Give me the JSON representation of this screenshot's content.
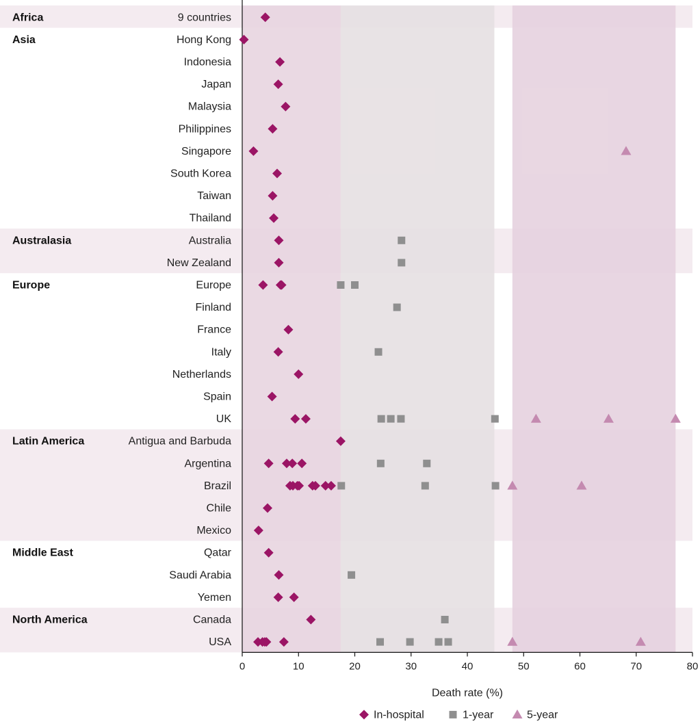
{
  "chart_data": {
    "type": "scatter",
    "xlabel": "Death rate (%)",
    "xlim": [
      0,
      80
    ],
    "xticks": [
      0,
      10,
      20,
      30,
      40,
      50,
      60,
      70,
      80
    ],
    "grid": false,
    "legend_placement": "bottom",
    "colors": {
      "in_hospital": "#9b1565",
      "one_year": "#8f8f8f",
      "five_year": "#c48ab0",
      "band_in_hospital": "#e8d5e0",
      "band_one_year": "#e6e0e2",
      "band_five_year": "#e6d2df",
      "stripe": "#f4ebf0"
    },
    "bands": [
      {
        "series": "In-hospital",
        "from": 0,
        "to": 17.5
      },
      {
        "series": "1-year",
        "from": 17.5,
        "to": 44.8
      },
      {
        "series": "5-year",
        "from": 48,
        "to": 77
      }
    ],
    "legend": [
      {
        "key": "in_hospital",
        "marker": "diamond",
        "label": "In-hospital"
      },
      {
        "key": "one_year",
        "marker": "square",
        "label": "1-year"
      },
      {
        "key": "five_year",
        "marker": "triangle",
        "label": "5-year"
      }
    ],
    "regions": [
      {
        "name": "Africa",
        "shaded": true,
        "countries": [
          {
            "name": "9 countries",
            "in_hospital": [
              4.1
            ],
            "one_year": [],
            "five_year": []
          }
        ]
      },
      {
        "name": "Asia",
        "shaded": false,
        "countries": [
          {
            "name": "Hong Kong",
            "in_hospital": [
              0.3
            ],
            "one_year": [],
            "five_year": []
          },
          {
            "name": "Indonesia",
            "in_hospital": [
              6.7
            ],
            "one_year": [],
            "five_year": []
          },
          {
            "name": "Japan",
            "in_hospital": [
              6.4
            ],
            "one_year": [],
            "five_year": []
          },
          {
            "name": "Malaysia",
            "in_hospital": [
              7.7
            ],
            "one_year": [],
            "five_year": []
          },
          {
            "name": "Philippines",
            "in_hospital": [
              5.4
            ],
            "one_year": [],
            "five_year": []
          },
          {
            "name": "Singapore",
            "in_hospital": [
              2.0
            ],
            "one_year": [],
            "five_year": [
              68.2
            ]
          },
          {
            "name": "South Korea",
            "in_hospital": [
              6.2
            ],
            "one_year": [],
            "five_year": []
          },
          {
            "name": "Taiwan",
            "in_hospital": [
              5.4
            ],
            "one_year": [],
            "five_year": []
          },
          {
            "name": "Thailand",
            "in_hospital": [
              5.6
            ],
            "one_year": [],
            "five_year": []
          }
        ]
      },
      {
        "name": "Australasia",
        "shaded": true,
        "countries": [
          {
            "name": "Australia",
            "in_hospital": [
              6.5
            ],
            "one_year": [
              28.3
            ],
            "five_year": []
          },
          {
            "name": "New Zealand",
            "in_hospital": [
              6.5
            ],
            "one_year": [
              28.3
            ],
            "five_year": []
          }
        ]
      },
      {
        "name": "Europe",
        "shaded": false,
        "countries": [
          {
            "name": "Europe",
            "in_hospital": [
              3.7,
              6.8,
              7.0
            ],
            "one_year": [
              17.5,
              20.0
            ],
            "five_year": []
          },
          {
            "name": "Finland",
            "in_hospital": [],
            "one_year": [
              27.5
            ],
            "five_year": []
          },
          {
            "name": "France",
            "in_hospital": [
              8.2
            ],
            "one_year": [],
            "five_year": []
          },
          {
            "name": "Italy",
            "in_hospital": [
              6.4
            ],
            "one_year": [
              24.2
            ],
            "five_year": []
          },
          {
            "name": "Netherlands",
            "in_hospital": [
              10.0
            ],
            "one_year": [],
            "five_year": []
          },
          {
            "name": "Spain",
            "in_hospital": [
              5.3
            ],
            "one_year": [],
            "five_year": []
          },
          {
            "name": "UK",
            "in_hospital": [
              9.4,
              11.3
            ],
            "one_year": [
              24.7,
              26.4,
              28.2,
              44.9
            ],
            "five_year": [
              52.2,
              65.1,
              77.0
            ]
          }
        ]
      },
      {
        "name": "Latin America",
        "shaded": true,
        "countries": [
          {
            "name": "Antigua and Barbuda",
            "in_hospital": [
              17.5
            ],
            "one_year": [],
            "five_year": []
          },
          {
            "name": "Argentina",
            "in_hospital": [
              4.7,
              7.9,
              8.9,
              10.6
            ],
            "one_year": [
              24.6,
              32.8
            ],
            "five_year": []
          },
          {
            "name": "Brazil",
            "in_hospital": [
              8.5,
              9.0,
              9.8,
              10.1,
              12.5,
              13.0,
              14.8,
              15.8
            ],
            "one_year": [
              17.6,
              32.5,
              45.0
            ],
            "five_year": [
              48.0,
              60.3
            ]
          },
          {
            "name": "Chile",
            "in_hospital": [
              4.5
            ],
            "one_year": [],
            "five_year": []
          },
          {
            "name": "Mexico",
            "in_hospital": [
              2.9
            ],
            "one_year": [],
            "five_year": []
          }
        ]
      },
      {
        "name": "Middle East",
        "shaded": false,
        "countries": [
          {
            "name": "Qatar",
            "in_hospital": [
              4.7
            ],
            "one_year": [],
            "five_year": []
          },
          {
            "name": "Saudi Arabia",
            "in_hospital": [
              6.5
            ],
            "one_year": [
              19.4
            ],
            "five_year": []
          },
          {
            "name": "Yemen",
            "in_hospital": [
              6.4,
              9.2
            ],
            "one_year": [],
            "five_year": []
          }
        ]
      },
      {
        "name": "North America",
        "shaded": true,
        "countries": [
          {
            "name": "Canada",
            "in_hospital": [
              12.2
            ],
            "one_year": [
              36.0
            ],
            "five_year": []
          },
          {
            "name": "USA",
            "in_hospital": [
              2.8,
              3.6,
              4.0,
              4.3,
              7.4
            ],
            "one_year": [
              24.5,
              29.8,
              34.9,
              36.6
            ],
            "five_year": [
              48.0,
              70.8
            ]
          }
        ]
      }
    ]
  }
}
